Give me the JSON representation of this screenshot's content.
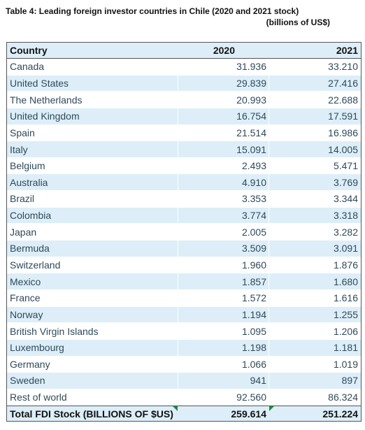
{
  "title": "Table 4: Leading foreign investor countries in Chile (2020 and 2021 stock)",
  "subtitle": "(billions of US$)",
  "headers": {
    "country": "Country",
    "y2020": "2020",
    "y2021": "2021"
  },
  "rows": [
    {
      "country": "Canada",
      "y2020": "31.936",
      "y2021": "33.210"
    },
    {
      "country": "United States",
      "y2020": "29.839",
      "y2021": "27.416"
    },
    {
      "country": "The Netherlands",
      "y2020": "20.993",
      "y2021": "22.688"
    },
    {
      "country": "United Kingdom",
      "y2020": "16.754",
      "y2021": "17.591"
    },
    {
      "country": "Spain",
      "y2020": "21.514",
      "y2021": "16.986"
    },
    {
      "country": "Italy",
      "y2020": "15.091",
      "y2021": "14.005"
    },
    {
      "country": "Belgium",
      "y2020": "2.493",
      "y2021": "5.471"
    },
    {
      "country": "Australia",
      "y2020": "4.910",
      "y2021": "3.769"
    },
    {
      "country": "Brazil",
      "y2020": "3.353",
      "y2021": "3.344"
    },
    {
      "country": "Colombia",
      "y2020": "3.774",
      "y2021": "3.318"
    },
    {
      "country": "Japan",
      "y2020": "2.005",
      "y2021": "3.282"
    },
    {
      "country": "Bermuda",
      "y2020": "3.509",
      "y2021": "3.091"
    },
    {
      "country": "Switzerland",
      "y2020": "1.960",
      "y2021": "1.876"
    },
    {
      "country": "Mexico",
      "y2020": "1.857",
      "y2021": "1.680"
    },
    {
      "country": "France",
      "y2020": "1.572",
      "y2021": "1.616"
    },
    {
      "country": "Norway",
      "y2020": "1.194",
      "y2021": "1.255"
    },
    {
      "country": "British Virgin Islands",
      "y2020": "1.095",
      "y2021": "1.206"
    },
    {
      "country": "Luxembourg",
      "y2020": "1.198",
      "y2021": "1.181"
    },
    {
      "country": "Germany",
      "y2020": "1.066",
      "y2021": "1.019"
    },
    {
      "country": "Sweden",
      "y2020": "941",
      "y2021": "897"
    },
    {
      "country": "Rest of world",
      "y2020": "92.560",
      "y2021": "86.324"
    }
  ],
  "total": {
    "label": "Total FDI Stock (BILLIONS OF $US)",
    "y2020": "259.614",
    "y2021": "251.224"
  }
}
